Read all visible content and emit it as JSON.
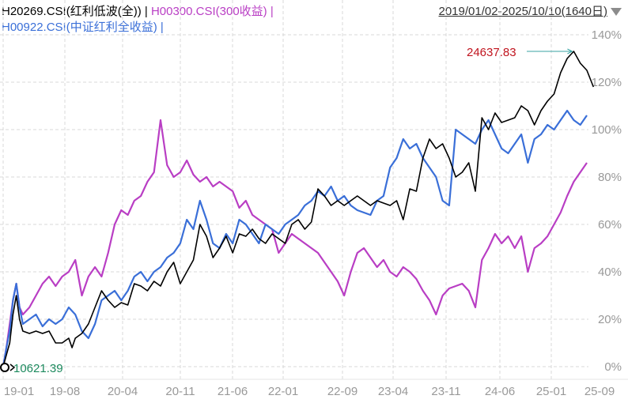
{
  "legend": {
    "line1": [
      {
        "text": "H20269.CSI(红利低波(全))",
        "color": "#000000"
      },
      {
        "text": " | ",
        "color": "#000000"
      },
      {
        "text": "H00300.CSI(300收益)",
        "color": "#b93ec4"
      },
      {
        "text": " |",
        "color": "#b93ec4"
      }
    ],
    "line2": [
      {
        "text": "H00922.CSI(中证红利全收益)",
        "color": "#3a6fd8"
      },
      {
        "text": " |",
        "color": "#3a6fd8"
      }
    ]
  },
  "date_range": "2019/01/02-2025/10/10(1640日)",
  "chart_data": {
    "type": "line",
    "x_ticks": [
      "19-01",
      "19-08",
      "20-04",
      "20-11",
      "21-06",
      "22-01",
      "22-09",
      "23-04",
      "23-11",
      "24-06",
      "25-01",
      "25-09"
    ],
    "y_ticks": [
      "140%",
      "120%",
      "100%",
      "80%",
      "60%",
      "40%",
      "20%",
      "0%"
    ],
    "ylim": [
      0,
      140
    ],
    "y_unit": "%",
    "annotations": {
      "max_label": "24637.83",
      "start_label": "10621.39"
    },
    "colors": {
      "h20269": "#000000",
      "h00300": "#b93ec4",
      "h00922": "#3a6fd8",
      "max_label": "#c0141e",
      "start_label": "#1d8a5e",
      "grid": "#d9d9d9"
    },
    "series": [
      {
        "name": "H20269.CSI(红利低波(全))",
        "key": "h20269",
        "values": [
          [
            0,
            0
          ],
          [
            0.5,
            5
          ],
          [
            1,
            10
          ],
          [
            1.5,
            22
          ],
          [
            2,
            30
          ],
          [
            2.5,
            20
          ],
          [
            3,
            15
          ],
          [
            4,
            14
          ],
          [
            5,
            15
          ],
          [
            6,
            14
          ],
          [
            7,
            15
          ],
          [
            8,
            10
          ],
          [
            9,
            10
          ],
          [
            10,
            12
          ],
          [
            10.5,
            8
          ],
          [
            11,
            12
          ],
          [
            12,
            14
          ],
          [
            13,
            18
          ],
          [
            14,
            25
          ],
          [
            15,
            32
          ],
          [
            16,
            28
          ],
          [
            17,
            25
          ],
          [
            18,
            27
          ],
          [
            19,
            26
          ],
          [
            20,
            35
          ],
          [
            21,
            34
          ],
          [
            22,
            32
          ],
          [
            23,
            36
          ],
          [
            24,
            34
          ],
          [
            25,
            40
          ],
          [
            26,
            44
          ],
          [
            27,
            35
          ],
          [
            28,
            40
          ],
          [
            29,
            45
          ],
          [
            30,
            60
          ],
          [
            31,
            55
          ],
          [
            32,
            46
          ],
          [
            33,
            50
          ],
          [
            34,
            55
          ],
          [
            35,
            48
          ],
          [
            36,
            56
          ],
          [
            37,
            55
          ],
          [
            38,
            58
          ],
          [
            39,
            54
          ],
          [
            40,
            52
          ],
          [
            41,
            56
          ],
          [
            42,
            54
          ],
          [
            43,
            52
          ],
          [
            44,
            60
          ],
          [
            45,
            62
          ],
          [
            46,
            58
          ],
          [
            47,
            61
          ],
          [
            48,
            75
          ],
          [
            49,
            72
          ],
          [
            50,
            68
          ],
          [
            51,
            70
          ],
          [
            52,
            68
          ],
          [
            53,
            70
          ],
          [
            54,
            72
          ],
          [
            55,
            70
          ],
          [
            56,
            68
          ],
          [
            57,
            70
          ],
          [
            58,
            69
          ],
          [
            59,
            68
          ],
          [
            60,
            70
          ],
          [
            61,
            62
          ],
          [
            62,
            75
          ],
          [
            63,
            74
          ],
          [
            64,
            88
          ],
          [
            65,
            96
          ],
          [
            66,
            92
          ],
          [
            67,
            94
          ],
          [
            68,
            88
          ],
          [
            69,
            80
          ],
          [
            70,
            82
          ],
          [
            71,
            86
          ],
          [
            72,
            74
          ],
          [
            73,
            105
          ],
          [
            74,
            100
          ],
          [
            75,
            107
          ],
          [
            76,
            103
          ],
          [
            77,
            104
          ],
          [
            78,
            105
          ],
          [
            79,
            110
          ],
          [
            80,
            108
          ],
          [
            81,
            102
          ],
          [
            82,
            108
          ],
          [
            83,
            112
          ],
          [
            84,
            115
          ],
          [
            85,
            124
          ],
          [
            86,
            130
          ],
          [
            87,
            133
          ],
          [
            88,
            128
          ],
          [
            89,
            125
          ],
          [
            90,
            118
          ]
        ]
      },
      {
        "name": "H00300.CSI(300收益)",
        "key": "h00300",
        "values": [
          [
            0,
            0
          ],
          [
            0.5,
            8
          ],
          [
            1,
            18
          ],
          [
            1.5,
            28
          ],
          [
            2,
            35
          ],
          [
            2.5,
            25
          ],
          [
            3,
            22
          ],
          [
            4,
            25
          ],
          [
            5,
            30
          ],
          [
            6,
            35
          ],
          [
            7,
            38
          ],
          [
            8,
            34
          ],
          [
            9,
            38
          ],
          [
            10,
            40
          ],
          [
            11,
            45
          ],
          [
            12,
            30
          ],
          [
            13,
            38
          ],
          [
            14,
            42
          ],
          [
            15,
            38
          ],
          [
            16,
            48
          ],
          [
            17,
            60
          ],
          [
            18,
            66
          ],
          [
            19,
            64
          ],
          [
            20,
            70
          ],
          [
            21,
            72
          ],
          [
            22,
            78
          ],
          [
            23,
            82
          ],
          [
            24,
            104
          ],
          [
            25,
            85
          ],
          [
            26,
            80
          ],
          [
            27,
            82
          ],
          [
            28,
            87
          ],
          [
            29,
            81
          ],
          [
            30,
            78
          ],
          [
            31,
            80
          ],
          [
            32,
            76
          ],
          [
            33,
            78
          ],
          [
            34,
            76
          ],
          [
            35,
            74
          ],
          [
            36,
            67
          ],
          [
            37,
            70
          ],
          [
            38,
            64
          ],
          [
            39,
            62
          ],
          [
            40,
            60
          ],
          [
            41,
            58
          ],
          [
            42,
            48
          ],
          [
            43,
            52
          ],
          [
            44,
            56
          ],
          [
            45,
            54
          ],
          [
            46,
            52
          ],
          [
            47,
            50
          ],
          [
            48,
            48
          ],
          [
            49,
            44
          ],
          [
            50,
            40
          ],
          [
            51,
            36
          ],
          [
            52,
            30
          ],
          [
            53,
            40
          ],
          [
            54,
            48
          ],
          [
            55,
            50
          ],
          [
            56,
            46
          ],
          [
            57,
            42
          ],
          [
            58,
            45
          ],
          [
            59,
            40
          ],
          [
            60,
            38
          ],
          [
            61,
            42
          ],
          [
            62,
            40
          ],
          [
            63,
            37
          ],
          [
            64,
            32
          ],
          [
            65,
            28
          ],
          [
            66,
            22
          ],
          [
            67,
            30
          ],
          [
            68,
            33
          ],
          [
            69,
            34
          ],
          [
            70,
            35
          ],
          [
            71,
            32
          ],
          [
            72,
            25
          ],
          [
            73,
            45
          ],
          [
            74,
            50
          ],
          [
            75,
            56
          ],
          [
            76,
            52
          ],
          [
            77,
            55
          ],
          [
            78,
            50
          ],
          [
            79,
            55
          ],
          [
            80,
            40
          ],
          [
            81,
            50
          ],
          [
            82,
            52
          ],
          [
            83,
            55
          ],
          [
            84,
            60
          ],
          [
            85,
            65
          ],
          [
            86,
            72
          ],
          [
            87,
            78
          ],
          [
            88,
            82
          ],
          [
            89,
            86
          ]
        ]
      },
      {
        "name": "H00922.CSI(中证红利全收益)",
        "key": "h00922",
        "values": [
          [
            0,
            0
          ],
          [
            0.5,
            8
          ],
          [
            1,
            15
          ],
          [
            1.5,
            28
          ],
          [
            2,
            35
          ],
          [
            2.5,
            25
          ],
          [
            3,
            18
          ],
          [
            4,
            20
          ],
          [
            5,
            22
          ],
          [
            6,
            17
          ],
          [
            7,
            20
          ],
          [
            8,
            18
          ],
          [
            9,
            20
          ],
          [
            10,
            25
          ],
          [
            11,
            22
          ],
          [
            12,
            15
          ],
          [
            13,
            12
          ],
          [
            14,
            18
          ],
          [
            15,
            28
          ],
          [
            16,
            30
          ],
          [
            17,
            32
          ],
          [
            18,
            28
          ],
          [
            19,
            32
          ],
          [
            20,
            38
          ],
          [
            21,
            40
          ],
          [
            22,
            36
          ],
          [
            23,
            40
          ],
          [
            24,
            42
          ],
          [
            25,
            46
          ],
          [
            26,
            48
          ],
          [
            27,
            52
          ],
          [
            28,
            62
          ],
          [
            29,
            58
          ],
          [
            30,
            70
          ],
          [
            31,
            62
          ],
          [
            32,
            52
          ],
          [
            33,
            50
          ],
          [
            34,
            56
          ],
          [
            35,
            52
          ],
          [
            36,
            62
          ],
          [
            37,
            60
          ],
          [
            38,
            56
          ],
          [
            39,
            52
          ],
          [
            40,
            60
          ],
          [
            41,
            58
          ],
          [
            42,
            56
          ],
          [
            43,
            60
          ],
          [
            44,
            62
          ],
          [
            45,
            64
          ],
          [
            46,
            68
          ],
          [
            47,
            70
          ],
          [
            48,
            74
          ],
          [
            49,
            72
          ],
          [
            50,
            76
          ],
          [
            51,
            70
          ],
          [
            52,
            72
          ],
          [
            53,
            68
          ],
          [
            54,
            66
          ],
          [
            55,
            65
          ],
          [
            56,
            64
          ],
          [
            57,
            70
          ],
          [
            58,
            72
          ],
          [
            59,
            84
          ],
          [
            60,
            88
          ],
          [
            61,
            96
          ],
          [
            62,
            92
          ],
          [
            63,
            94
          ],
          [
            64,
            88
          ],
          [
            65,
            84
          ],
          [
            66,
            80
          ],
          [
            67,
            70
          ],
          [
            68,
            68
          ],
          [
            69,
            100
          ],
          [
            70,
            98
          ],
          [
            71,
            96
          ],
          [
            72,
            94
          ],
          [
            73,
            100
          ],
          [
            74,
            104
          ],
          [
            75,
            98
          ],
          [
            76,
            92
          ],
          [
            77,
            90
          ],
          [
            78,
            94
          ],
          [
            79,
            98
          ],
          [
            80,
            86
          ],
          [
            81,
            96
          ],
          [
            82,
            98
          ],
          [
            83,
            102
          ],
          [
            84,
            100
          ],
          [
            85,
            104
          ],
          [
            86,
            108
          ],
          [
            87,
            104
          ],
          [
            88,
            102
          ],
          [
            89,
            106
          ]
        ]
      }
    ]
  }
}
